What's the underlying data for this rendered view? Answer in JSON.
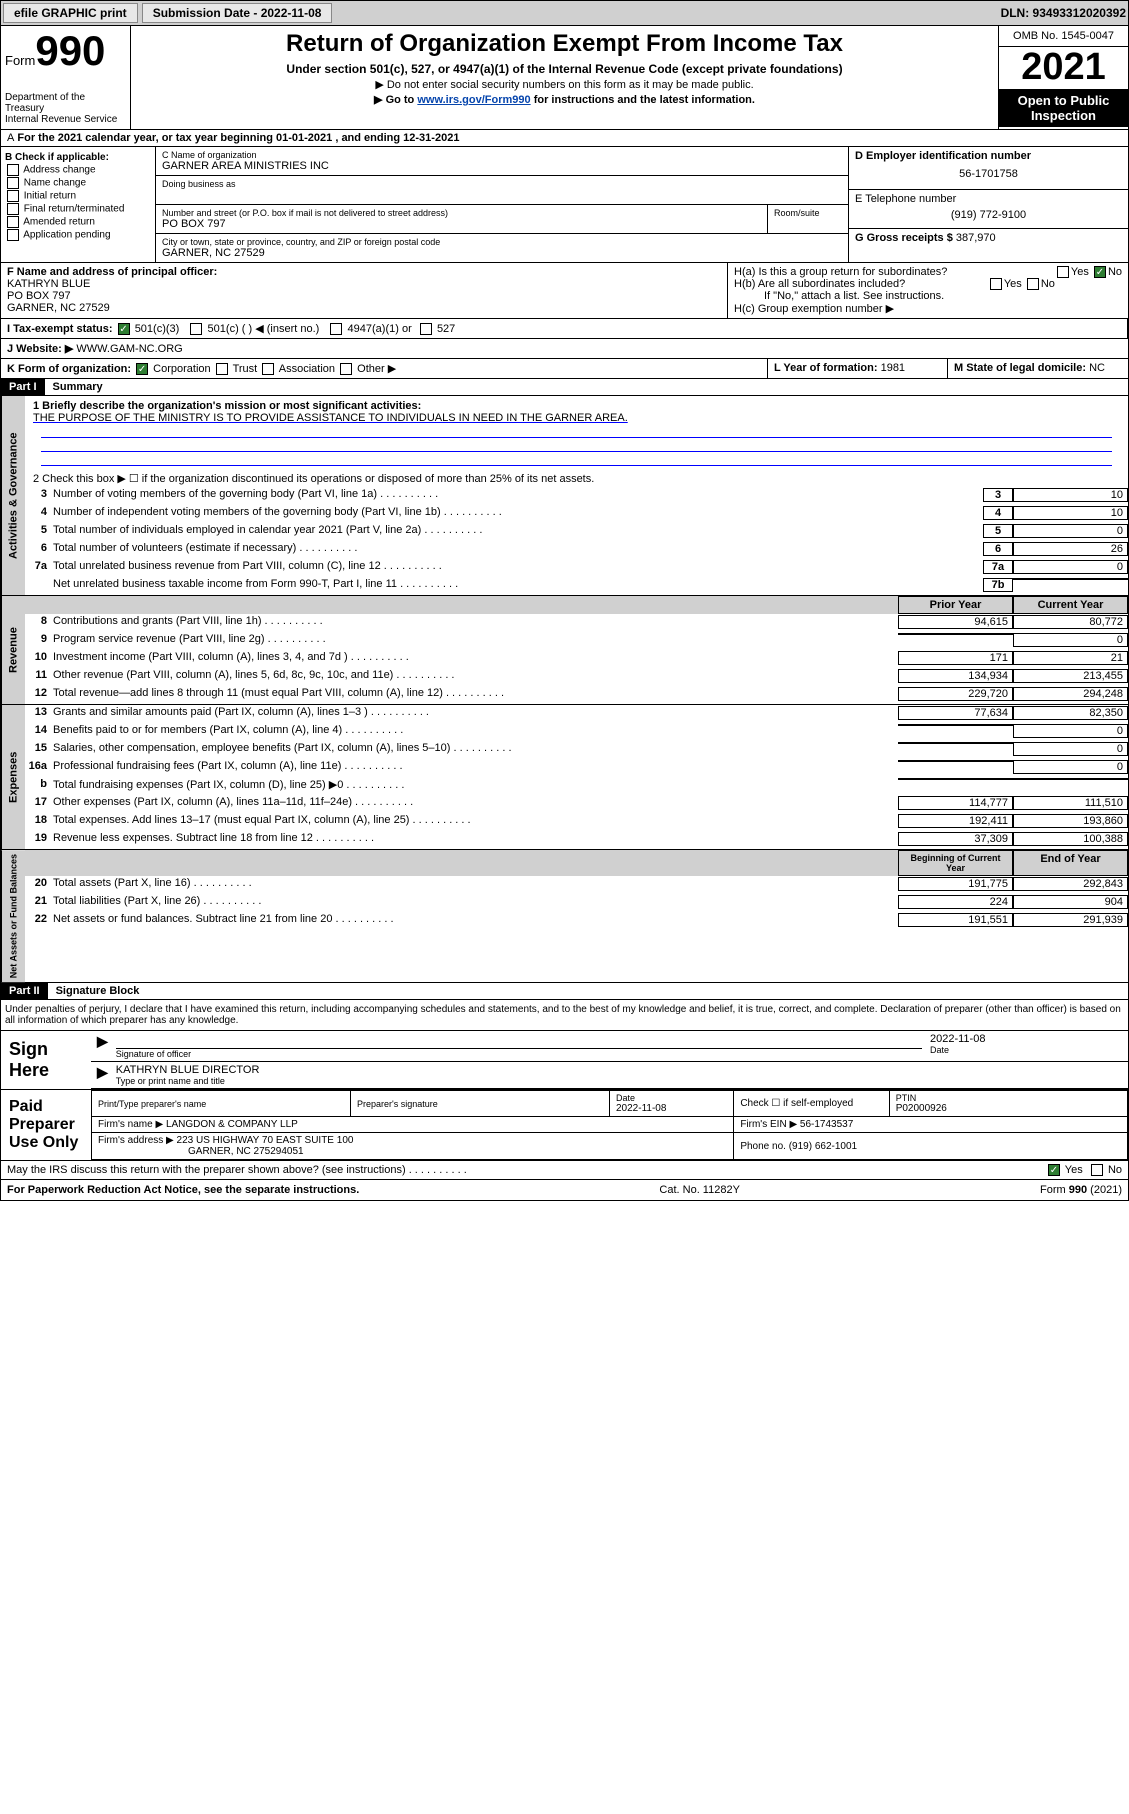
{
  "toolbar": {
    "efile": "efile GRAPHIC print",
    "submission_label": "Submission Date - 2022-11-08",
    "dln": "DLN: 93493312020392"
  },
  "header": {
    "form_label": "Form",
    "form_num": "990",
    "title": "Return of Organization Exempt From Income Tax",
    "subtitle": "Under section 501(c), 527, or 4947(a)(1) of the Internal Revenue Code (except private foundations)",
    "instr1": "▶ Do not enter social security numbers on this form as it may be made public.",
    "instr2_prefix": "▶ Go to ",
    "instr2_link": "www.irs.gov/Form990",
    "instr2_suffix": " for instructions and the latest information.",
    "dept": "Department of the Treasury\nInternal Revenue Service",
    "omb": "OMB No. 1545-0047",
    "year": "2021",
    "open": "Open to Public Inspection"
  },
  "period": "For the 2021 calendar year, or tax year beginning 01-01-2021   , and ending 12-31-2021",
  "box_b": {
    "header": "B Check if applicable:",
    "items": [
      "Address change",
      "Name change",
      "Initial return",
      "Final return/terminated",
      "Amended return",
      "Application pending"
    ]
  },
  "box_c": {
    "name_label": "C Name of organization",
    "name": "GARNER AREA MINISTRIES INC",
    "dba_label": "Doing business as",
    "addr_label": "Number and street (or P.O. box if mail is not delivered to street address)",
    "room_label": "Room/suite",
    "addr": "PO BOX 797",
    "city_label": "City or town, state or province, country, and ZIP or foreign postal code",
    "city": "GARNER, NC  27529"
  },
  "box_d": {
    "label": "D Employer identification number",
    "value": "56-1701758"
  },
  "box_e": {
    "label": "E Telephone number",
    "value": "(919) 772-9100"
  },
  "box_g": {
    "label": "G Gross receipts $",
    "value": "387,970"
  },
  "box_f": {
    "label": "F Name and address of principal officer:",
    "name": "KATHRYN BLUE",
    "addr1": "PO BOX 797",
    "addr2": "GARNER, NC  27529"
  },
  "box_h": {
    "a": "H(a)  Is this a group return for subordinates?",
    "b": "H(b)  Are all subordinates included?",
    "b_note": "If \"No,\" attach a list. See instructions.",
    "c": "H(c)  Group exemption number ▶",
    "yes": "Yes",
    "no": "No"
  },
  "tax_status": {
    "label": "I   Tax-exempt status:",
    "opt1": "501(c)(3)",
    "opt2": "501(c) (  ) ◀ (insert no.)",
    "opt3": "4947(a)(1) or",
    "opt4": "527"
  },
  "website": {
    "label": "J   Website: ▶",
    "value": "WWW.GAM-NC.ORG"
  },
  "box_k": {
    "label": "K Form of organization:",
    "opts": [
      "Corporation",
      "Trust",
      "Association",
      "Other ▶"
    ]
  },
  "box_l": {
    "label": "L Year of formation:",
    "value": "1981"
  },
  "box_m": {
    "label": "M State of legal domicile:",
    "value": "NC"
  },
  "part1": {
    "header": "Part I",
    "title": "Summary",
    "l1_label": "1  Briefly describe the organization's mission or most significant activities:",
    "l1_text": "THE PURPOSE OF THE MINISTRY IS TO PROVIDE ASSISTANCE TO INDIVIDUALS IN NEED IN THE GARNER AREA.",
    "l2": "2   Check this box ▶ ☐  if the organization discontinued its operations or disposed of more than 25% of its net assets.",
    "lines_gov": [
      {
        "n": "3",
        "t": "Number of voting members of the governing body (Part VI, line 1a)",
        "box": "3",
        "v": "10"
      },
      {
        "n": "4",
        "t": "Number of independent voting members of the governing body (Part VI, line 1b)",
        "box": "4",
        "v": "10"
      },
      {
        "n": "5",
        "t": "Total number of individuals employed in calendar year 2021 (Part V, line 2a)",
        "box": "5",
        "v": "0"
      },
      {
        "n": "6",
        "t": "Total number of volunteers (estimate if necessary)",
        "box": "6",
        "v": "26"
      },
      {
        "n": "7a",
        "t": "Total unrelated business revenue from Part VIII, column (C), line 12",
        "box": "7a",
        "v": "0"
      },
      {
        "n": "",
        "t": "Net unrelated business taxable income from Form 990-T, Part I, line 11",
        "box": "7b",
        "v": ""
      }
    ],
    "col_prior": "Prior Year",
    "col_current": "Current Year",
    "revenue": [
      {
        "n": "8",
        "t": "Contributions and grants (Part VIII, line 1h)",
        "p": "94,615",
        "c": "80,772"
      },
      {
        "n": "9",
        "t": "Program service revenue (Part VIII, line 2g)",
        "p": "",
        "c": "0"
      },
      {
        "n": "10",
        "t": "Investment income (Part VIII, column (A), lines 3, 4, and 7d )",
        "p": "171",
        "c": "21"
      },
      {
        "n": "11",
        "t": "Other revenue (Part VIII, column (A), lines 5, 6d, 8c, 9c, 10c, and 11e)",
        "p": "134,934",
        "c": "213,455"
      },
      {
        "n": "12",
        "t": "Total revenue—add lines 8 through 11 (must equal Part VIII, column (A), line 12)",
        "p": "229,720",
        "c": "294,248"
      }
    ],
    "expenses": [
      {
        "n": "13",
        "t": "Grants and similar amounts paid (Part IX, column (A), lines 1–3 )",
        "p": "77,634",
        "c": "82,350"
      },
      {
        "n": "14",
        "t": "Benefits paid to or for members (Part IX, column (A), line 4)",
        "p": "",
        "c": "0"
      },
      {
        "n": "15",
        "t": "Salaries, other compensation, employee benefits (Part IX, column (A), lines 5–10)",
        "p": "",
        "c": "0"
      },
      {
        "n": "16a",
        "t": "Professional fundraising fees (Part IX, column (A), line 11e)",
        "p": "",
        "c": "0"
      },
      {
        "n": "b",
        "t": "Total fundraising expenses (Part IX, column (D), line 25) ▶0",
        "p": "gray",
        "c": "gray"
      },
      {
        "n": "17",
        "t": "Other expenses (Part IX, column (A), lines 11a–11d, 11f–24e)",
        "p": "114,777",
        "c": "111,510"
      },
      {
        "n": "18",
        "t": "Total expenses. Add lines 13–17 (must equal Part IX, column (A), line 25)",
        "p": "192,411",
        "c": "193,860"
      },
      {
        "n": "19",
        "t": "Revenue less expenses. Subtract line 18 from line 12",
        "p": "37,309",
        "c": "100,388"
      }
    ],
    "col_begin": "Beginning of Current Year",
    "col_end": "End of Year",
    "netassets": [
      {
        "n": "20",
        "t": "Total assets (Part X, line 16)",
        "p": "191,775",
        "c": "292,843"
      },
      {
        "n": "21",
        "t": "Total liabilities (Part X, line 26)",
        "p": "224",
        "c": "904"
      },
      {
        "n": "22",
        "t": "Net assets or fund balances. Subtract line 21 from line 20",
        "p": "191,551",
        "c": "291,939"
      }
    ],
    "vlabels": [
      "Activities & Governance",
      "Revenue",
      "Expenses",
      "Net Assets or Fund Balances"
    ]
  },
  "part2": {
    "header": "Part II",
    "title": "Signature Block",
    "penalty": "Under penalties of perjury, I declare that I have examined this return, including accompanying schedules and statements, and to the best of my knowledge and belief, it is true, correct, and complete. Declaration of preparer (other than officer) is based on all information of which preparer has any knowledge.",
    "sign_here": "Sign Here",
    "sig_officer": "Signature of officer",
    "sig_date": "2022-11-08",
    "date_label": "Date",
    "officer_name": "KATHRYN BLUE  DIRECTOR",
    "type_label": "Type or print name and title",
    "paid": "Paid Preparer Use Only",
    "prep_name_label": "Print/Type preparer's name",
    "prep_sig_label": "Preparer's signature",
    "prep_date": "2022-11-08",
    "check_if": "Check ☐ if self-employed",
    "ptin_label": "PTIN",
    "ptin": "P02000926",
    "firm_label": "Firm's name   ▶",
    "firm": "LANGDON & COMPANY LLP",
    "ein_label": "Firm's EIN ▶",
    "ein": "56-1743537",
    "firm_addr_label": "Firm's address ▶",
    "firm_addr": "223 US HIGHWAY 70 EAST SUITE 100",
    "firm_city": "GARNER, NC  275294051",
    "phone_label": "Phone no.",
    "phone": "(919) 662-1001",
    "discuss": "May the IRS discuss this return with the preparer shown above? (see instructions)"
  },
  "footer": {
    "left": "For Paperwork Reduction Act Notice, see the separate instructions.",
    "mid": "Cat. No. 11282Y",
    "right": "Form 990 (2021)"
  }
}
